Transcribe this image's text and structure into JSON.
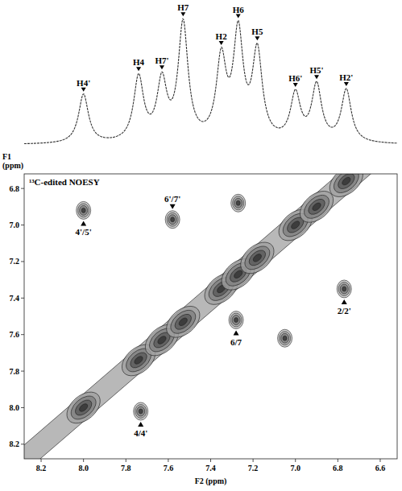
{
  "chart_data": {
    "type": "contour",
    "title": "¹³C-edited NOESY",
    "x_label": "F2 (ppm)",
    "y_label": "F1 (ppm)",
    "xlim": [
      8.28,
      6.52
    ],
    "ylim": [
      6.72,
      8.28
    ],
    "xticks": [
      8.2,
      {
        "value": 8,
        "label": "8.0"
      },
      7.8,
      7.6,
      7.4,
      7.2,
      {
        "value": 7,
        "label": "7.0"
      },
      6.8,
      6.6
    ],
    "yticks": [
      6.8,
      {
        "value": 7,
        "label": "7.0"
      },
      7.2,
      7.4,
      7.6,
      7.8,
      {
        "value": 8,
        "label": "8.0"
      },
      8.2
    ],
    "trace_peaks": [
      {
        "label": "H4'",
        "shift": 8.0,
        "height": 0.42
      },
      {
        "label": "H4",
        "shift": 7.74,
        "height": 0.55
      },
      {
        "label": "H7'",
        "shift": 7.63,
        "height": 0.5
      },
      {
        "label": "H7",
        "shift": 7.53,
        "height": 1.0
      },
      {
        "label": "H2",
        "shift": 7.35,
        "height": 0.68
      },
      {
        "label": "H6",
        "shift": 7.27,
        "height": 0.9
      },
      {
        "label": "H5",
        "shift": 7.18,
        "height": 0.75
      },
      {
        "label": "H6'",
        "shift": 7.0,
        "height": 0.4
      },
      {
        "label": "H5'",
        "shift": 6.9,
        "height": 0.48
      },
      {
        "label": "H2'",
        "shift": 6.76,
        "height": 0.45
      }
    ],
    "cross_peaks": [
      {
        "label": "4'/5'",
        "f2": 8.0,
        "f1": 6.92
      },
      {
        "label": "6'/7'",
        "f2": 7.58,
        "f1": 6.97
      },
      {
        "label": "2/2'",
        "f2": 6.77,
        "f1": 7.35
      },
      {
        "label": "6/7",
        "f2": 7.28,
        "f1": 7.52
      },
      {
        "label": "4/4'",
        "f2": 7.73,
        "f1": 8.02
      },
      {
        "label": null,
        "f2": 7.05,
        "f1": 7.62
      },
      {
        "label": null,
        "f2": 7.27,
        "f1": 6.88
      }
    ]
  }
}
